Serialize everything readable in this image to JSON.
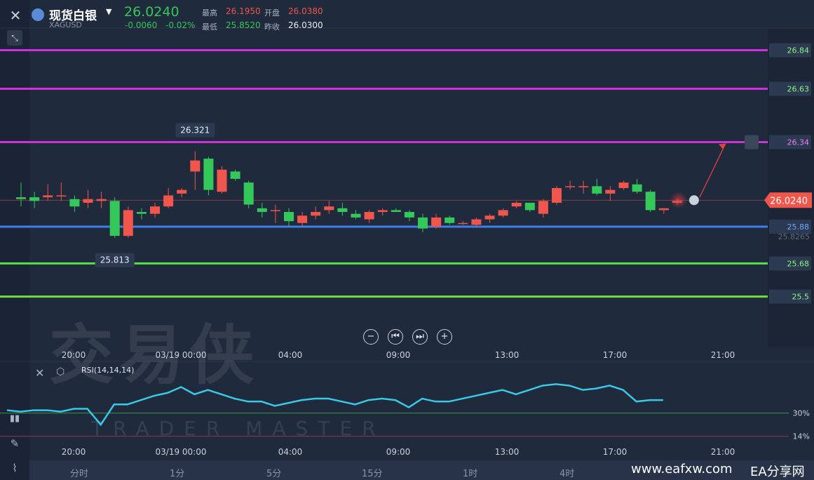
{
  "header": {
    "symbol_name": "现货白银",
    "symbol_code": "XAGUSD",
    "price": "26.0240",
    "change": "-0.0060",
    "change_pct": "-0.02%",
    "high_label": "最高",
    "high": "26.1950",
    "open_label": "开盘",
    "open": "26.0380",
    "low_label": "最低",
    "low": "25.8520",
    "prev_close_label": "昨收",
    "prev_close": "26.0300"
  },
  "watermark": {
    "main": "交易侠",
    "sub": "TRADER MASTER"
  },
  "indicator": {
    "label": "RSI(14,14,14)"
  },
  "timeframes": [
    "分时",
    "1分",
    "5分",
    "15分",
    "1时",
    "4时"
  ],
  "footer": {
    "site": "www.eafxw.com",
    "brand": "EA分享网"
  },
  "colors": {
    "up": "#f0564c",
    "down": "#34c759",
    "bg": "#1f2a3d",
    "rsi": "#39c8e6"
  },
  "chart_data": {
    "type": "candlestick",
    "time_ticks": [
      "20:00",
      "03/19 00:00",
      "04:00",
      "09:00",
      "13:00",
      "17:00",
      "21:00"
    ],
    "price_range": [
      25.3,
      26.96
    ],
    "current_price": "26.0240",
    "current_price_value": 26.024,
    "right_axis_extra": "25.8265",
    "levels": [
      {
        "label": "26.84",
        "value": 26.84,
        "color": "#d42ee0"
      },
      {
        "label": "26.63",
        "value": 26.63,
        "color": "#d42ee0"
      },
      {
        "label": "26.34",
        "value": 26.34,
        "color": "#c934d4"
      },
      {
        "label": "25.88",
        "value": 25.88,
        "color": "#3f7ee8"
      },
      {
        "label": "25.68",
        "value": 25.68,
        "color": "#58e04a"
      },
      {
        "label": "25.5",
        "value": 25.5,
        "color": "#6ce03c"
      }
    ],
    "annotations": [
      {
        "text": "26.321",
        "value": 26.321,
        "candle": 13
      },
      {
        "text": "25.813",
        "value": 25.813,
        "candle": 7
      }
    ],
    "candles": [
      {
        "o": 26.04,
        "h": 26.12,
        "l": 25.99,
        "c": 26.03
      },
      {
        "o": 26.04,
        "h": 26.07,
        "l": 25.98,
        "c": 26.02
      },
      {
        "o": 26.04,
        "h": 26.11,
        "l": 26.02,
        "c": 26.05
      },
      {
        "o": 26.05,
        "h": 26.12,
        "l": 26.02,
        "c": 26.05
      },
      {
        "o": 26.03,
        "h": 26.05,
        "l": 25.96,
        "c": 25.99
      },
      {
        "o": 26.01,
        "h": 26.08,
        "l": 25.98,
        "c": 26.03
      },
      {
        "o": 26.02,
        "h": 26.07,
        "l": 25.98,
        "c": 26.03
      },
      {
        "o": 26.02,
        "h": 26.04,
        "l": 25.82,
        "c": 25.83
      },
      {
        "o": 25.83,
        "h": 25.99,
        "l": 25.82,
        "c": 25.97
      },
      {
        "o": 25.96,
        "h": 25.98,
        "l": 25.92,
        "c": 25.95
      },
      {
        "o": 25.95,
        "h": 26.01,
        "l": 25.93,
        "c": 25.99
      },
      {
        "o": 25.99,
        "h": 26.09,
        "l": 25.98,
        "c": 26.05
      },
      {
        "o": 26.06,
        "h": 26.09,
        "l": 26.04,
        "c": 26.08
      },
      {
        "o": 26.18,
        "h": 26.29,
        "l": 26.08,
        "c": 26.24
      },
      {
        "o": 26.25,
        "h": 26.26,
        "l": 26.05,
        "c": 26.08
      },
      {
        "o": 26.07,
        "h": 26.21,
        "l": 26.06,
        "c": 26.19
      },
      {
        "o": 26.18,
        "h": 26.19,
        "l": 26.13,
        "c": 26.14
      },
      {
        "o": 26.12,
        "h": 26.13,
        "l": 25.98,
        "c": 26.0
      },
      {
        "o": 25.98,
        "h": 26.01,
        "l": 25.93,
        "c": 25.96
      },
      {
        "o": 25.97,
        "h": 26.0,
        "l": 25.9,
        "c": 25.97
      },
      {
        "o": 25.96,
        "h": 25.98,
        "l": 25.88,
        "c": 25.91
      },
      {
        "o": 25.9,
        "h": 25.96,
        "l": 25.88,
        "c": 25.94
      },
      {
        "o": 25.94,
        "h": 25.99,
        "l": 25.92,
        "c": 25.96
      },
      {
        "o": 25.97,
        "h": 26.02,
        "l": 25.95,
        "c": 25.99
      },
      {
        "o": 25.98,
        "h": 26.01,
        "l": 25.94,
        "c": 25.96
      },
      {
        "o": 25.95,
        "h": 25.97,
        "l": 25.92,
        "c": 25.93
      },
      {
        "o": 25.92,
        "h": 25.97,
        "l": 25.9,
        "c": 25.96
      },
      {
        "o": 25.96,
        "h": 25.98,
        "l": 25.94,
        "c": 25.97
      },
      {
        "o": 25.97,
        "h": 25.98,
        "l": 25.96,
        "c": 25.96
      },
      {
        "o": 25.96,
        "h": 25.97,
        "l": 25.91,
        "c": 25.93
      },
      {
        "o": 25.93,
        "h": 25.95,
        "l": 25.85,
        "c": 25.87
      },
      {
        "o": 25.88,
        "h": 25.95,
        "l": 25.87,
        "c": 25.93
      },
      {
        "o": 25.93,
        "h": 25.94,
        "l": 25.89,
        "c": 25.9
      },
      {
        "o": 25.9,
        "h": 25.91,
        "l": 25.89,
        "c": 25.9
      },
      {
        "o": 25.89,
        "h": 25.93,
        "l": 25.88,
        "c": 25.92
      },
      {
        "o": 25.92,
        "h": 25.95,
        "l": 25.9,
        "c": 25.94
      },
      {
        "o": 25.94,
        "h": 25.98,
        "l": 25.93,
        "c": 25.97
      },
      {
        "o": 25.99,
        "h": 26.02,
        "l": 25.98,
        "c": 26.01
      },
      {
        "o": 26.01,
        "h": 26.01,
        "l": 25.96,
        "c": 25.97
      },
      {
        "o": 25.95,
        "h": 26.03,
        "l": 25.93,
        "c": 26.02
      },
      {
        "o": 26.01,
        "h": 26.1,
        "l": 26.0,
        "c": 26.09
      },
      {
        "o": 26.1,
        "h": 26.13,
        "l": 26.08,
        "c": 26.1
      },
      {
        "o": 26.1,
        "h": 26.13,
        "l": 26.06,
        "c": 26.1
      },
      {
        "o": 26.1,
        "h": 26.14,
        "l": 26.05,
        "c": 26.06
      },
      {
        "o": 26.06,
        "h": 26.1,
        "l": 26.02,
        "c": 26.08
      },
      {
        "o": 26.09,
        "h": 26.13,
        "l": 26.08,
        "c": 26.12
      },
      {
        "o": 26.11,
        "h": 26.14,
        "l": 26.06,
        "c": 26.07
      },
      {
        "o": 26.07,
        "h": 26.08,
        "l": 25.96,
        "c": 25.97
      },
      {
        "o": 25.97,
        "h": 25.98,
        "l": 25.95,
        "c": 25.98
      },
      {
        "o": 26.01,
        "h": 26.03,
        "l": 26.0,
        "c": 26.02
      }
    ],
    "rsi": {
      "lines": [
        {
          "label": "30%",
          "value": 30
        },
        {
          "label": "14%",
          "value": 14
        }
      ],
      "values": [
        32,
        31,
        32,
        32,
        31,
        33,
        33,
        22,
        36,
        36,
        39,
        42,
        44,
        48,
        43,
        46,
        43,
        40,
        38,
        38,
        35,
        37,
        39,
        40,
        40,
        38,
        36,
        39,
        40,
        39,
        34,
        40,
        38,
        38,
        40,
        42,
        44,
        46,
        43,
        46,
        49,
        50,
        49,
        46,
        47,
        49,
        46,
        38,
        39,
        39
      ],
      "range": [
        10,
        56
      ]
    }
  }
}
